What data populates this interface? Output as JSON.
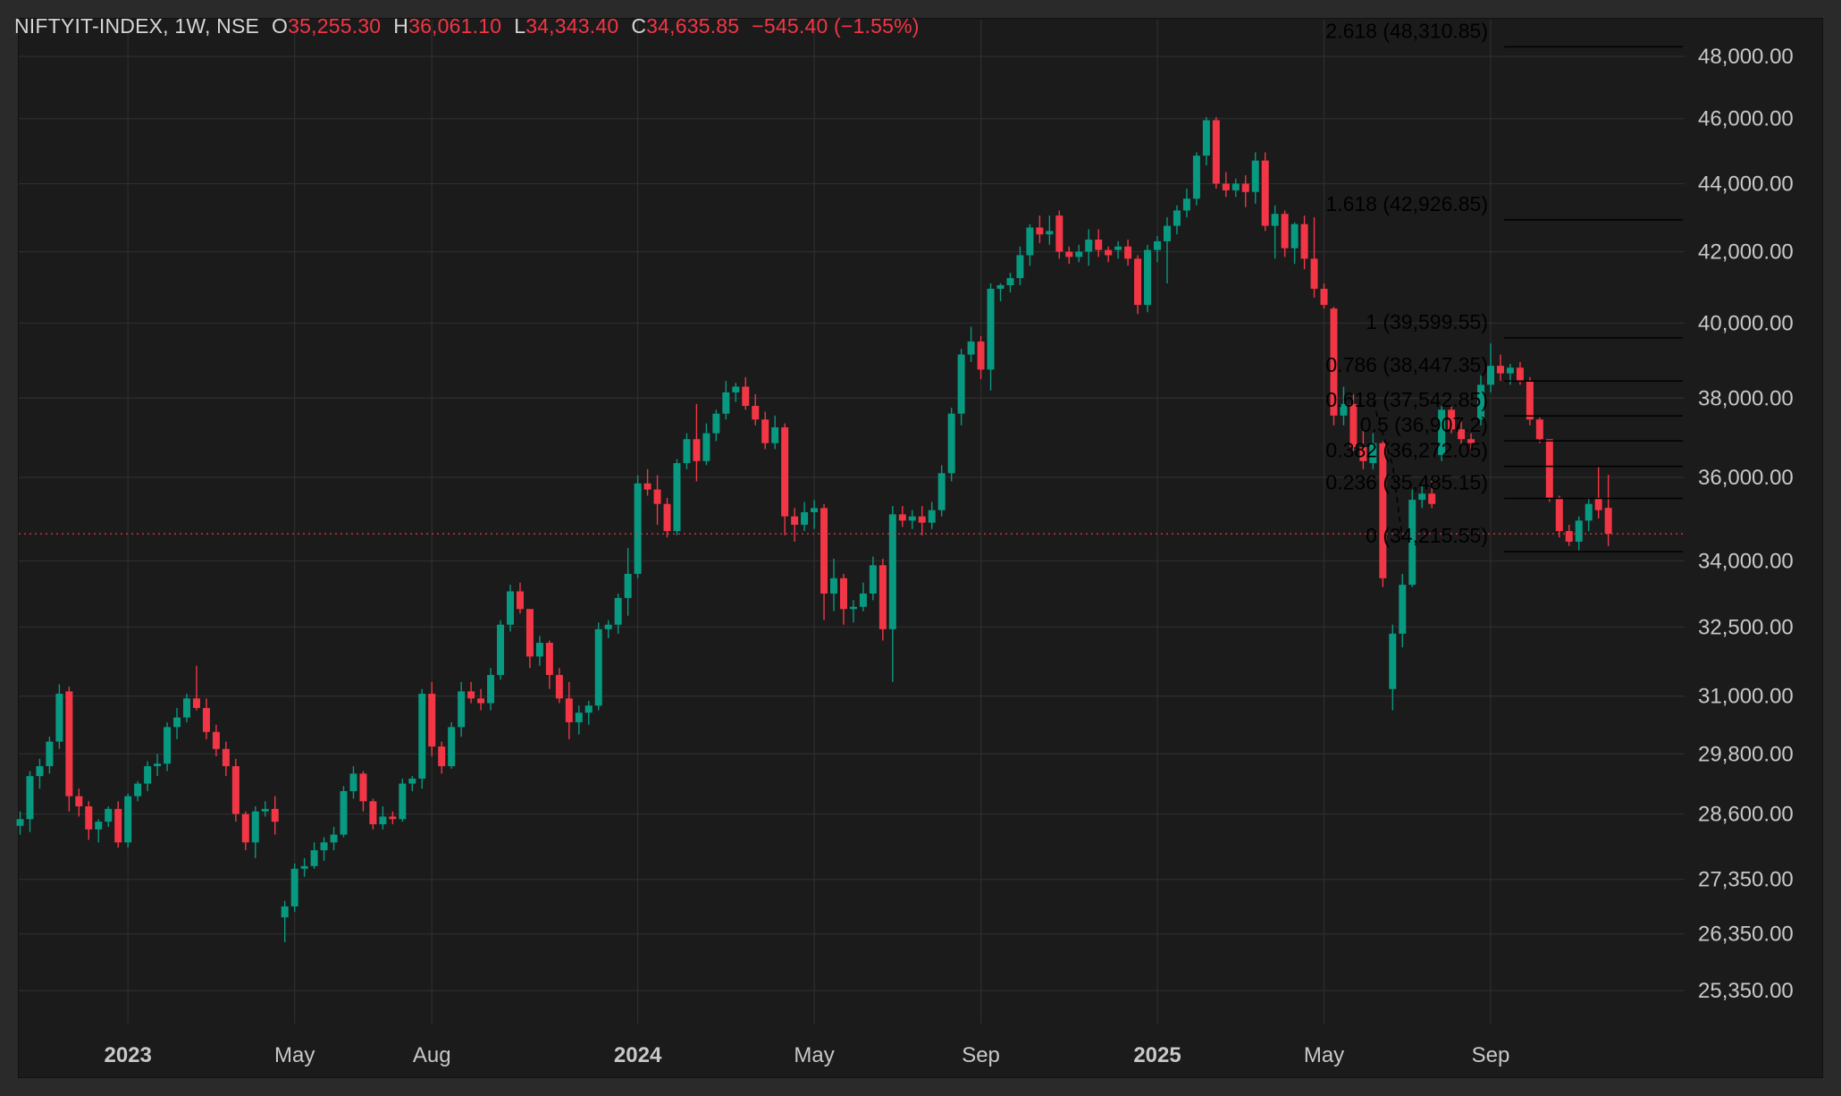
{
  "header": {
    "symbol": "NIFTYIT-INDEX, 1W, NSE",
    "open_label": "O",
    "open": "35,255.30",
    "high_label": "H",
    "high": "36,061.10",
    "low_label": "L",
    "low": "34,343.40",
    "close_label": "C",
    "close": "34,635.85",
    "change": "−545.40 (−1.55%)"
  },
  "colors": {
    "up": "#089981",
    "down": "#f23645",
    "background": "#1b1b1b",
    "grid": "#2e2e2e",
    "text": "#c8c8c8",
    "fib_line": "#000000"
  },
  "chart_data": {
    "type": "candlestick",
    "title": "",
    "symbol": "NIFTYIT-INDEX",
    "interval": "1W",
    "exchange": "NSE",
    "last_price": 34635.85,
    "price_line": "dotted red at last price",
    "grid": true,
    "y_axis": {
      "position": "right",
      "ticks": [
        48000,
        46000,
        44000,
        42000,
        40000,
        38000,
        36000,
        34000,
        32500,
        31000,
        29800,
        28600,
        27350,
        26350,
        25350
      ],
      "tick_labels": [
        "48,000.00",
        "46,000.00",
        "44,000.00",
        "42,000.00",
        "40,000.00",
        "38,000.00",
        "36,000.00",
        "34,000.00",
        "32,500.00",
        "31,000.00",
        "29,800.00",
        "28,600.00",
        "27,350.00",
        "26,350.00",
        "25,350.00"
      ],
      "scale": "log",
      "range": [
        24700,
        48600
      ]
    },
    "x_axis": {
      "ticks": [
        {
          "label": "2023",
          "week": 11,
          "bold": true
        },
        {
          "label": "May",
          "week": 28,
          "bold": false
        },
        {
          "label": "Aug",
          "week": 42,
          "bold": false
        },
        {
          "label": "2024",
          "week": 63,
          "bold": true
        },
        {
          "label": "May",
          "week": 81,
          "bold": false
        },
        {
          "label": "Sep",
          "week": 98,
          "bold": false
        },
        {
          "label": "2025",
          "week": 116,
          "bold": true
        },
        {
          "label": "May",
          "week": 133,
          "bold": false
        },
        {
          "label": "Sep",
          "week": 150,
          "bold": false
        }
      ]
    },
    "fib_extension": {
      "levels": [
        {
          "label": "2.618 (48,310.85)",
          "value": 48310.85
        },
        {
          "label": "1.618 (42,926.85)",
          "value": 42926.85
        },
        {
          "label": "1 (39,599.55)",
          "value": 39599.55
        },
        {
          "label": "0.786 (38,447.35)",
          "value": 38447.35
        },
        {
          "label": "0.618 (37,542.85)",
          "value": 37542.85
        },
        {
          "label": "0.5 (36,907.2)",
          "value": 36907.2
        },
        {
          "label": "0.382 (36,272.05)",
          "value": 36272.05
        },
        {
          "label": "0.236 (35,485.15)",
          "value": 35485.15
        },
        {
          "label": "0 (34,215.55)",
          "value": 34215.55
        }
      ],
      "trend_points": [
        [
          138,
          37900
        ],
        [
          140,
          36300
        ],
        [
          141,
          34500
        ]
      ]
    },
    "candles": [
      [
        28370,
        28650,
        28200,
        28500
      ],
      [
        28500,
        29450,
        28250,
        29350
      ],
      [
        29350,
        29700,
        29100,
        29550
      ],
      [
        29550,
        30150,
        29400,
        30050
      ],
      [
        30050,
        31250,
        29900,
        31050
      ],
      [
        31100,
        31200,
        28650,
        28950
      ],
      [
        28950,
        29100,
        28550,
        28750
      ],
      [
        28750,
        28850,
        28100,
        28300
      ],
      [
        28300,
        28500,
        28050,
        28450
      ],
      [
        28450,
        28750,
        28350,
        28700
      ],
      [
        28700,
        28850,
        27950,
        28050
      ],
      [
        28050,
        29000,
        27950,
        28950
      ],
      [
        28950,
        29250,
        28850,
        29200
      ],
      [
        29200,
        29650,
        29050,
        29550
      ],
      [
        29550,
        29800,
        29350,
        29600
      ],
      [
        29600,
        30450,
        29450,
        30350
      ],
      [
        30350,
        30750,
        30100,
        30550
      ],
      [
        30550,
        31050,
        30450,
        30950
      ],
      [
        30950,
        31650,
        30700,
        30750
      ],
      [
        30750,
        30950,
        30100,
        30250
      ],
      [
        30250,
        30400,
        29750,
        29900
      ],
      [
        29900,
        30050,
        29350,
        29550
      ],
      [
        29550,
        29700,
        28450,
        28600
      ],
      [
        28600,
        28650,
        27900,
        28050
      ],
      [
        28050,
        28750,
        27750,
        28650
      ],
      [
        28650,
        28850,
        28550,
        28700
      ],
      [
        28700,
        28950,
        28200,
        28450
      ],
      [
        26650,
        26950,
        26200,
        26850
      ],
      [
        26850,
        27650,
        26750,
        27550
      ],
      [
        27550,
        27750,
        27400,
        27600
      ],
      [
        27600,
        28050,
        27550,
        27900
      ],
      [
        27900,
        28150,
        27700,
        28050
      ],
      [
        28050,
        28350,
        27900,
        28200
      ],
      [
        28200,
        29150,
        28150,
        29050
      ],
      [
        29050,
        29550,
        28900,
        29400
      ],
      [
        29400,
        29450,
        28650,
        28850
      ],
      [
        28850,
        28900,
        28300,
        28400
      ],
      [
        28400,
        28750,
        28300,
        28550
      ],
      [
        28550,
        28650,
        28400,
        28500
      ],
      [
        28500,
        29300,
        28450,
        29200
      ],
      [
        29200,
        29350,
        29050,
        29300
      ],
      [
        29300,
        31150,
        29100,
        31050
      ],
      [
        31050,
        31300,
        29750,
        29950
      ],
      [
        29950,
        30050,
        29400,
        29550
      ],
      [
        29550,
        30450,
        29500,
        30350
      ],
      [
        30350,
        31300,
        30150,
        31100
      ],
      [
        31100,
        31300,
        30850,
        30950
      ],
      [
        30950,
        31150,
        30700,
        30850
      ],
      [
        30850,
        31600,
        30700,
        31450
      ],
      [
        31450,
        32650,
        31350,
        32550
      ],
      [
        32550,
        33450,
        32400,
        33300
      ],
      [
        33300,
        33500,
        32800,
        32900
      ],
      [
        32900,
        32900,
        31600,
        31850
      ],
      [
        31850,
        32300,
        31650,
        32150
      ],
      [
        32150,
        32200,
        31150,
        31450
      ],
      [
        31450,
        31600,
        30850,
        30950
      ],
      [
        30950,
        31300,
        30100,
        30450
      ],
      [
        30450,
        30800,
        30200,
        30650
      ],
      [
        30650,
        30900,
        30400,
        30800
      ],
      [
        30800,
        32600,
        30700,
        32450
      ],
      [
        32450,
        32650,
        32250,
        32550
      ],
      [
        32550,
        33250,
        32350,
        33150
      ],
      [
        33150,
        34300,
        32750,
        33700
      ],
      [
        33700,
        36050,
        33600,
        35850
      ],
      [
        35850,
        36200,
        35550,
        35700
      ],
      [
        35700,
        36050,
        34850,
        35350
      ],
      [
        35350,
        35500,
        34550,
        34700
      ],
      [
        34700,
        36450,
        34600,
        36350
      ],
      [
        36350,
        37100,
        36200,
        36950
      ],
      [
        36950,
        37850,
        35900,
        36400
      ],
      [
        36400,
        37350,
        36300,
        37100
      ],
      [
        37100,
        37700,
        36900,
        37600
      ],
      [
        37600,
        38450,
        37450,
        38150
      ],
      [
        38150,
        38400,
        37900,
        38300
      ],
      [
        38300,
        38550,
        37700,
        37800
      ],
      [
        37800,
        38100,
        37300,
        37450
      ],
      [
        37450,
        37650,
        36700,
        36850
      ],
      [
        36850,
        37550,
        36700,
        37250
      ],
      [
        37250,
        37350,
        34600,
        35050
      ],
      [
        35050,
        35250,
        34450,
        34850
      ],
      [
        34850,
        35400,
        34700,
        35150
      ],
      [
        35150,
        35450,
        34750,
        35250
      ],
      [
        35250,
        35350,
        32650,
        33250
      ],
      [
        33250,
        34050,
        32850,
        33600
      ],
      [
        33600,
        33700,
        32550,
        32900
      ],
      [
        32900,
        33100,
        32600,
        32950
      ],
      [
        32950,
        33500,
        32850,
        33250
      ],
      [
        33250,
        34100,
        33100,
        33900
      ],
      [
        33900,
        34050,
        32200,
        32450
      ],
      [
        32450,
        35300,
        31300,
        35100
      ],
      [
        35100,
        35300,
        34800,
        34950
      ],
      [
        34950,
        35200,
        34750,
        35050
      ],
      [
        35050,
        35300,
        34600,
        34900
      ],
      [
        34900,
        35400,
        34750,
        35200
      ],
      [
        35200,
        36300,
        35050,
        36100
      ],
      [
        36100,
        37750,
        35900,
        37600
      ],
      [
        37600,
        39300,
        37300,
        39150
      ],
      [
        39150,
        39900,
        38950,
        39500
      ],
      [
        39500,
        39650,
        38500,
        38750
      ],
      [
        38750,
        41100,
        38200,
        40950
      ],
      [
        40950,
        41100,
        40600,
        41050
      ],
      [
        41050,
        41400,
        40850,
        41250
      ],
      [
        41250,
        42150,
        41050,
        41900
      ],
      [
        41900,
        42800,
        41600,
        42700
      ],
      [
        42700,
        43050,
        42250,
        42500
      ],
      [
        42500,
        43050,
        42200,
        42600
      ],
      [
        43050,
        43200,
        41800,
        42000
      ],
      [
        42000,
        42150,
        41650,
        41850
      ],
      [
        41850,
        42200,
        41700,
        42000
      ],
      [
        42000,
        42650,
        41600,
        42350
      ],
      [
        42350,
        42650,
        41850,
        42050
      ],
      [
        42050,
        42150,
        41700,
        41900
      ],
      [
        42050,
        42300,
        41800,
        42150
      ],
      [
        42150,
        42350,
        41600,
        41800
      ],
      [
        41800,
        41900,
        40250,
        40500
      ],
      [
        40500,
        42200,
        40300,
        42050
      ],
      [
        42050,
        42450,
        41700,
        42300
      ],
      [
        42300,
        43000,
        41100,
        42750
      ],
      [
        42750,
        43350,
        42500,
        43200
      ],
      [
        43200,
        43850,
        43000,
        43550
      ],
      [
        43550,
        44950,
        43350,
        44850
      ],
      [
        44850,
        46050,
        44550,
        45950
      ],
      [
        45950,
        46050,
        43850,
        44000
      ],
      [
        44000,
        44350,
        43600,
        43800
      ],
      [
        43800,
        44150,
        43600,
        44000
      ],
      [
        44000,
        44250,
        43300,
        43750
      ],
      [
        43750,
        44950,
        43400,
        44700
      ],
      [
        44700,
        44950,
        42600,
        42750
      ],
      [
        42750,
        43350,
        41800,
        43100
      ],
      [
        43100,
        43200,
        41850,
        42100
      ],
      [
        42100,
        42850,
        41650,
        42800
      ],
      [
        42800,
        43050,
        41500,
        41800
      ],
      [
        41800,
        43000,
        40700,
        40950
      ],
      [
        40950,
        41100,
        40400,
        40500
      ],
      [
        40400,
        40450,
        37300,
        37550
      ],
      [
        37550,
        38300,
        37300,
        37850
      ],
      [
        37850,
        38100,
        36650,
        36750
      ],
      [
        36750,
        37200,
        36200,
        36400
      ],
      [
        36350,
        37100,
        36200,
        36850
      ],
      [
        36850,
        36900,
        33400,
        33600
      ],
      [
        31150,
        32550,
        30700,
        32350
      ],
      [
        32350,
        33700,
        32050,
        33450
      ],
      [
        33450,
        35700,
        33400,
        35450
      ],
      [
        35450,
        35800,
        35250,
        35600
      ],
      [
        35600,
        36000,
        35250,
        35350
      ],
      [
        36550,
        37800,
        36400,
        37700
      ],
      [
        37700,
        37800,
        37100,
        37200
      ],
      [
        37200,
        37450,
        36800,
        36950
      ],
      [
        36950,
        37100,
        36700,
        36850
      ],
      [
        37450,
        38600,
        37300,
        38350
      ],
      [
        38350,
        39450,
        38150,
        38850
      ],
      [
        38850,
        39150,
        38450,
        38650
      ],
      [
        38650,
        38900,
        38350,
        38800
      ],
      [
        38800,
        38950,
        38350,
        38450
      ],
      [
        38450,
        38550,
        37300,
        37450
      ],
      [
        37450,
        37500,
        36850,
        36950
      ],
      [
        36950,
        36950,
        35400,
        35500
      ],
      [
        35500,
        35550,
        34550,
        34700
      ],
      [
        34700,
        34850,
        34350,
        34450
      ],
      [
        34450,
        35050,
        34250,
        34950
      ],
      [
        34950,
        35500,
        34700,
        35350
      ],
      [
        35500,
        36250,
        35000,
        35200
      ],
      [
        35255.3,
        36061.1,
        34343.4,
        34635.85
      ]
    ]
  }
}
